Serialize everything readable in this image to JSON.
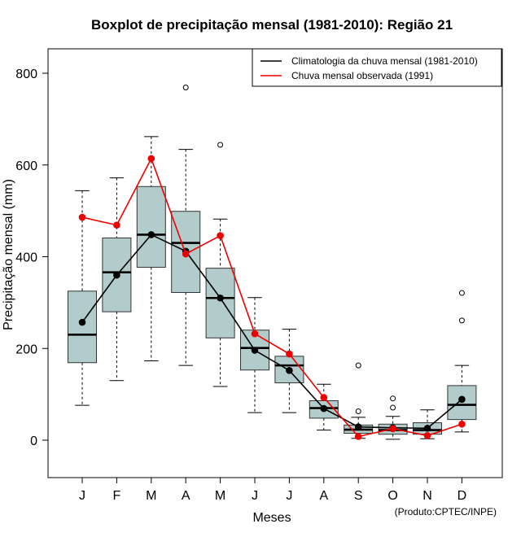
{
  "chart_data": {
    "type": "boxplot",
    "title": "Boxplot de precipitação mensal (1981-2010): Região 21",
    "xlabel": "Meses",
    "ylabel": "Precipitação mensal (mm)",
    "ylim": [
      -80,
      850
    ],
    "yticks": [
      0,
      200,
      400,
      600,
      800
    ],
    "categories": [
      "J",
      "F",
      "M",
      "A",
      "M",
      "J",
      "J",
      "A",
      "S",
      "O",
      "N",
      "D"
    ],
    "boxes": [
      {
        "whisker_low": 76,
        "q1": 169,
        "median": 230,
        "q3": 325,
        "whisker_high": 544,
        "outliers": []
      },
      {
        "whisker_low": 130,
        "q1": 280,
        "median": 366,
        "q3": 441,
        "whisker_high": 572,
        "outliers": []
      },
      {
        "whisker_low": 173,
        "q1": 377,
        "median": 448,
        "q3": 553,
        "whisker_high": 662,
        "outliers": []
      },
      {
        "whisker_low": 163,
        "q1": 322,
        "median": 430,
        "q3": 499,
        "whisker_high": 634,
        "outliers": [
          769
        ]
      },
      {
        "whisker_low": 117,
        "q1": 223,
        "median": 310,
        "q3": 375,
        "whisker_high": 482,
        "outliers": [
          644
        ]
      },
      {
        "whisker_low": 60,
        "q1": 153,
        "median": 201,
        "q3": 240,
        "whisker_high": 311,
        "outliers": []
      },
      {
        "whisker_low": 60,
        "q1": 125,
        "median": 163,
        "q3": 183,
        "whisker_high": 242,
        "outliers": []
      },
      {
        "whisker_low": 22,
        "q1": 48,
        "median": 70,
        "q3": 86,
        "whisker_high": 122,
        "outliers": []
      },
      {
        "whisker_low": 4,
        "q1": 15,
        "median": 23,
        "q3": 33,
        "whisker_high": 50,
        "outliers": [
          63,
          163
        ]
      },
      {
        "whisker_low": 2,
        "q1": 13,
        "median": 22,
        "q3": 35,
        "whisker_high": 52,
        "outliers": [
          71,
          91
        ]
      },
      {
        "whisker_low": 3,
        "q1": 13,
        "median": 22,
        "q3": 38,
        "whisker_high": 66,
        "outliers": []
      },
      {
        "whisker_low": 18,
        "q1": 45,
        "median": 77,
        "q3": 119,
        "whisker_high": 163,
        "outliers": [
          261,
          321
        ]
      }
    ],
    "series": [
      {
        "name": "Climatologia da chuva mensal (1981-2010)",
        "color": "#000000",
        "values": [
          257,
          360,
          448,
          412,
          310,
          196,
          152,
          69,
          29,
          27,
          26,
          89
        ]
      },
      {
        "name": "Chuva mensal observada (1991)",
        "color": "#ee0000",
        "values": [
          486,
          469,
          614,
          406,
          446,
          232,
          188,
          93,
          8,
          25,
          10,
          35
        ]
      }
    ],
    "legend_position": "top-right",
    "box_fill": "#b2cbcb",
    "credit": "(Produto:CPTEC/INPE)"
  }
}
